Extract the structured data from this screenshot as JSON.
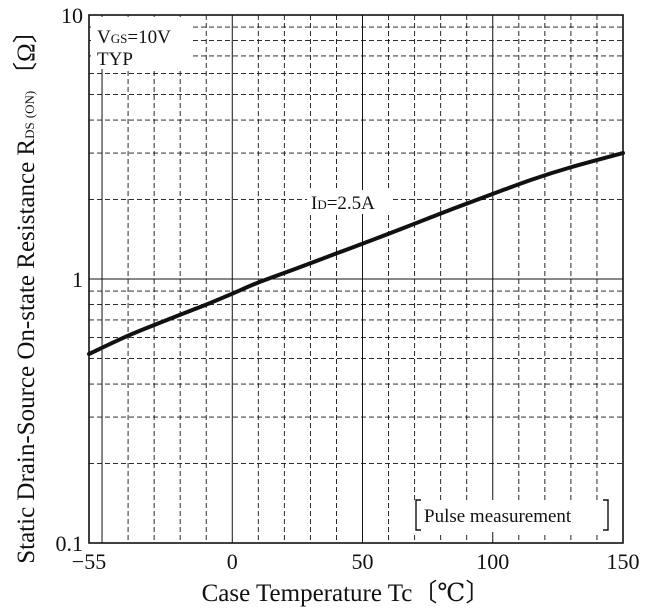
{
  "chart_data": {
    "type": "line",
    "title": "",
    "xlabel": "Case Temperature  Tc〔℃〕",
    "ylabel_main": "Static Drain-Source On-state Resistance R",
    "ylabel_sub": "DS",
    "ylabel_sub2": "(ON)",
    "ylabel_unit": "〔Ω〕",
    "xlim": [
      -55,
      150
    ],
    "ylim": [
      0.1,
      10
    ],
    "y_scale": "log",
    "grid": true,
    "x_ticks": [
      -55,
      0,
      50,
      100,
      150
    ],
    "x_tick_labels": [
      "−55",
      "0",
      "50",
      "100",
      "150"
    ],
    "y_ticks": [
      0.1,
      1,
      10
    ],
    "y_tick_labels": [
      "0.1",
      "1",
      "10"
    ],
    "series": [
      {
        "name": "I_D=2.5A",
        "x": [
          -55,
          -40,
          -25,
          -10,
          0,
          10,
          25,
          40,
          55,
          70,
          85,
          100,
          115,
          130,
          150
        ],
        "y": [
          0.52,
          0.61,
          0.7,
          0.8,
          0.88,
          0.97,
          1.1,
          1.25,
          1.42,
          1.62,
          1.85,
          2.1,
          2.38,
          2.65,
          3.0
        ]
      }
    ],
    "annotations": {
      "condition_line1_main": "V",
      "condition_line1_sub": "GS",
      "condition_line1_rest": "=10V",
      "condition_line2": "TYP",
      "series_label_main": "I",
      "series_label_sub": "D",
      "series_label_rest": "=2.5A",
      "pulse_note": "Pulse measurement"
    }
  }
}
